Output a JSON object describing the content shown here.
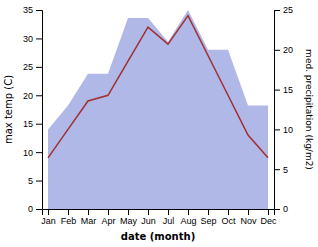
{
  "chart_data": {
    "type": "line",
    "x_label": "date (month)",
    "y_label": "max temp (C)",
    "y2_label": "med. precipitation (kg/m2)",
    "categories": [
      "Jan",
      "Feb",
      "Mar",
      "Apr",
      "May",
      "Jun",
      "Jul",
      "Aug",
      "Sep",
      "Oct",
      "Nov",
      "Dec"
    ],
    "series": [
      {
        "type": "area",
        "axis": "y2",
        "color": "#b0b8e8",
        "values": [
          10,
          13,
          17,
          17,
          24,
          24,
          21,
          25,
          20,
          20,
          13,
          13
        ]
      },
      {
        "type": "line",
        "axis": "y",
        "color": "#a03030",
        "values": [
          9,
          14,
          19,
          20,
          26,
          32,
          29,
          34,
          27,
          20,
          13,
          9
        ]
      }
    ],
    "ylim": [
      0,
      35
    ],
    "yticks": [
      0,
      5,
      10,
      15,
      20,
      25,
      30,
      35
    ],
    "y2lim": [
      0,
      25
    ],
    "y2ticks": [
      0,
      5,
      10,
      15,
      20,
      25
    ],
    "grid": false
  }
}
